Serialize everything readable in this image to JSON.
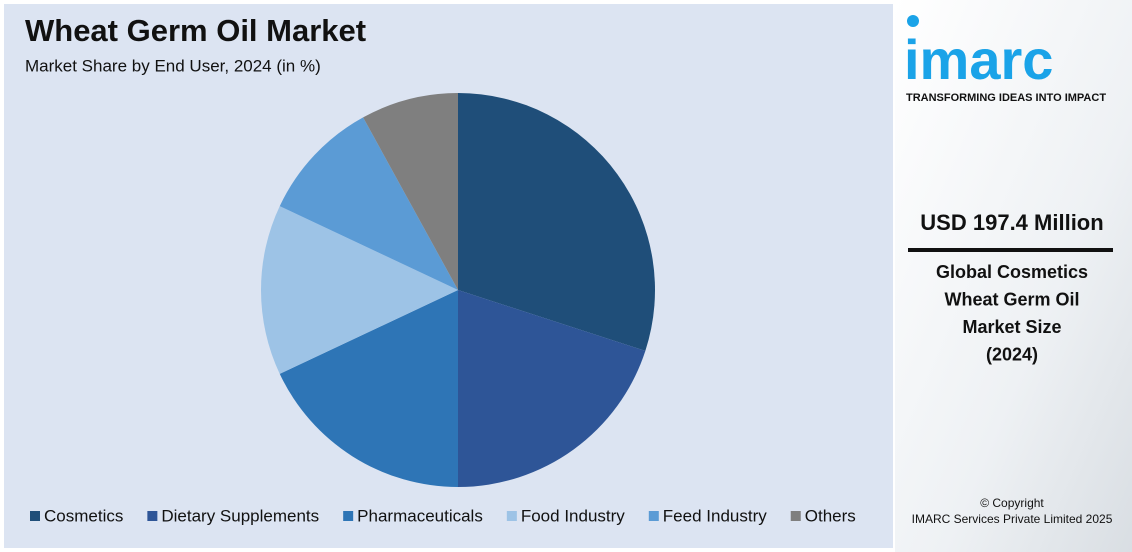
{
  "chart_data": {
    "type": "pie",
    "title": "Wheat Germ Oil Market",
    "subtitle": "Market Share by End User, 2024 (in %)",
    "categories": [
      "Cosmetics",
      "Dietary Supplements",
      "Pharmaceuticals",
      "Food Industry",
      "Feed Industry",
      "Others"
    ],
    "values": [
      30,
      20,
      18,
      14,
      10,
      8
    ],
    "colors": [
      "#1f4e79",
      "#2e5597",
      "#2e75b6",
      "#9dc3e6",
      "#5b9bd5",
      "#7f7f7f"
    ],
    "legend": "bottom"
  },
  "sidebar": {
    "logo": "imarc",
    "tagline": "TRANSFORMING IDEAS INTO IMPACT",
    "headline": "USD 197.4 Million",
    "description": [
      "Global Cosmetics",
      "Wheat Germ Oil",
      "Market Size",
      "(2024)"
    ],
    "copyright": "© Copyright",
    "company": "IMARC Services Private Limited 2025"
  }
}
